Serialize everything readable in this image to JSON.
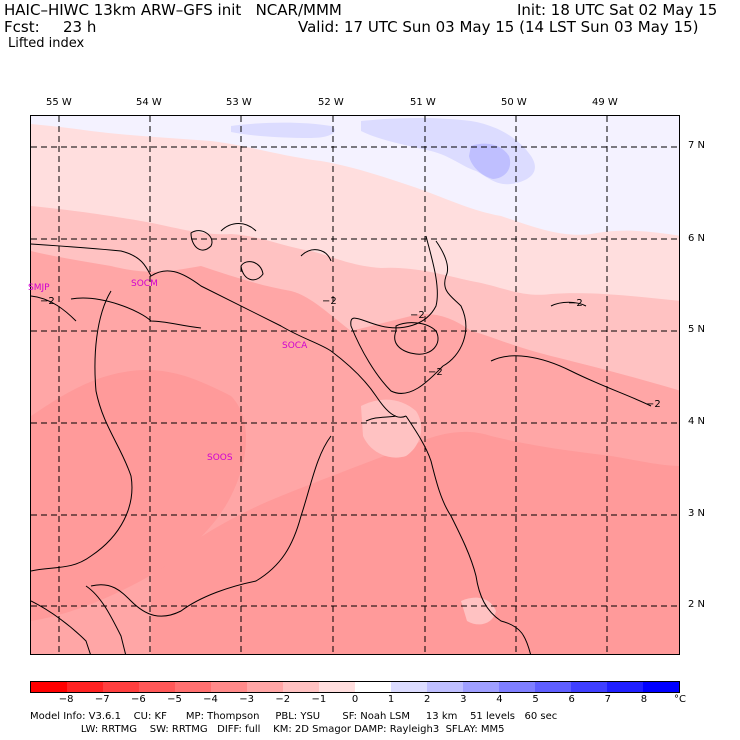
{
  "header": {
    "title_left": "HAIC–HIWC 13km ARW–GFS init   NCAR/MMM",
    "init": "Init: 18 UTC Sat 02 May 15",
    "fcst_label": "Fcst:",
    "fcst_value": "23 h",
    "valid": "Valid: 17 UTC Sun 03 May 15 (14 LST Sun 03 May 15)",
    "field": "Lifted index"
  },
  "longitudes": [
    "55 W",
    "54 W",
    "53 W",
    "52 W",
    "51 W",
    "50 W",
    "49 W"
  ],
  "latitudes": [
    "7 N",
    "6 N",
    "5 N",
    "4 N",
    "3 N",
    "2 N"
  ],
  "stations": [
    "SMJP",
    "SOCM",
    "SOCA",
    "SOOS"
  ],
  "contour_label": "−2",
  "colorbar": {
    "labels": [
      "−8",
      "−7",
      "−6",
      "−5",
      "−4",
      "−3",
      "−2",
      "−1",
      "0",
      "1",
      "2",
      "3",
      "4",
      "5",
      "6",
      "7",
      "8"
    ],
    "unit": "°C",
    "colors": [
      "#ff0000",
      "#ff2222",
      "#ff3f3f",
      "#ff5858",
      "#ff7070",
      "#ff8a8a",
      "#ffa6a6",
      "#ffc2c2",
      "#ffdede",
      "#ffffff",
      "#dcdcff",
      "#bfbfff",
      "#9f9fff",
      "#7f7fff",
      "#5f5fff",
      "#3f3fff",
      "#1f1fff",
      "#0000ff"
    ]
  },
  "footer": {
    "line1": "Model Info: V3.6.1    CU: KF      MP: Thompson     PBL: YSU       SF: Noah LSM     13 km    51 levels   60 sec",
    "line2": "                LW: RRTMG    SW: RRTMG   DIFF: full    KM: 2D Smagor DAMP: Rayleigh3  SFLAY: MM5"
  }
}
